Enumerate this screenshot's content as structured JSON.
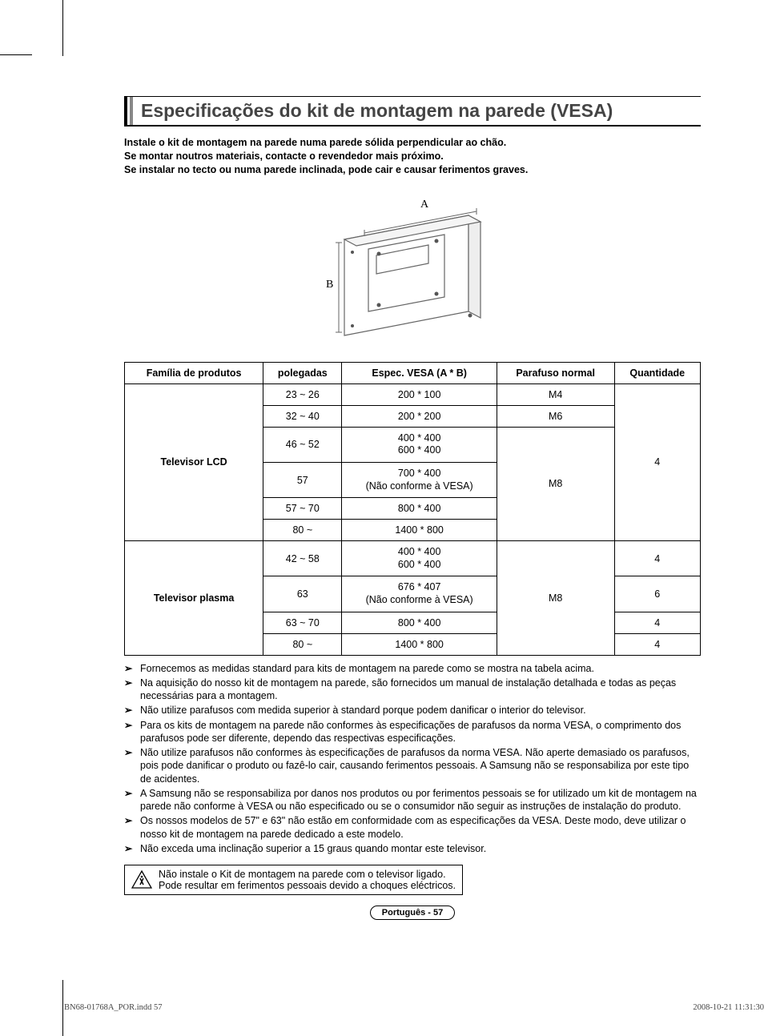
{
  "title": "Especificações do kit de montagem na parede (VESA)",
  "intro_lines": [
    "Instale o kit de montagem na parede numa parede sólida perpendicular ao chão.",
    "Se montar noutros materiais, contacte o revendedor mais próximo.",
    "Se instalar no tecto ou numa parede inclinada, pode cair e causar ferimentos graves."
  ],
  "diagram": {
    "label_a": "A",
    "label_b": "B",
    "stroke": "#666666",
    "fill": "#ffffff"
  },
  "table": {
    "columns": [
      "Família de produtos",
      "polegadas",
      "Espec. VESA (A * B)",
      "Parafuso normal",
      "Quantidade"
    ],
    "groups": [
      {
        "family": "Televisor LCD",
        "qty_merged": "4",
        "rows": [
          {
            "inches": "23 ~ 26",
            "vesa": "200 * 100",
            "screw": "M4"
          },
          {
            "inches": "32 ~ 40",
            "vesa": "200 * 200",
            "screw": "M6"
          },
          {
            "inches": "46 ~ 52",
            "vesa": "400 * 400\n600 * 400",
            "screw": "M8",
            "screw_rowspan": 4
          },
          {
            "inches": "57",
            "vesa": "700 * 400\n(Não conforme à VESA)"
          },
          {
            "inches": "57 ~ 70",
            "vesa": "800 * 400"
          },
          {
            "inches": "80 ~",
            "vesa": "1400 * 800"
          }
        ]
      },
      {
        "family": "Televisor plasma",
        "rows": [
          {
            "inches": "42 ~ 58",
            "vesa": "400 * 400\n600 * 400",
            "screw": "M8",
            "screw_rowspan": 4,
            "qty": "4"
          },
          {
            "inches": "63",
            "vesa": "676 * 407\n(Não conforme à VESA)",
            "qty": "6"
          },
          {
            "inches": "63 ~ 70",
            "vesa": "800 * 400",
            "qty": "4"
          },
          {
            "inches": "80 ~",
            "vesa": "1400 * 800",
            "qty": "4"
          }
        ]
      }
    ]
  },
  "notes": [
    "Fornecemos as medidas standard para kits de montagem na parede como se mostra na tabela acima.",
    "Na aquisição do nosso kit de montagem na parede, são fornecidos um manual de instalação detalhada e todas as peças necessárias para a montagem.",
    "Não utilize parafusos com medida superior à standard porque podem danificar o interior do televisor.",
    "Para os kits de montagem na parede não conformes às especificações de parafusos da norma VESA, o comprimento dos parafusos pode ser diferente, dependo das respectivas especificações.",
    "Não utilize parafusos não conformes às especificações de parafusos da norma VESA. Não aperte demasiado os parafusos, pois pode danificar o produto ou fazê-lo cair, causando ferimentos pessoais. A Samsung não se responsabiliza por este tipo de acidentes.",
    "A Samsung não se responsabiliza por danos nos produtos ou por ferimentos pessoais se for utilizado um kit de montagem na parede não conforme à VESA ou não especificado ou se o consumidor não seguir as instruções de instalação do produto.",
    "Os nossos modelos de 57\" e 63\" não estão em conformidade com as especificações da VESA. Deste modo, deve utilizar o nosso kit de montagem na parede dedicado a este modelo.",
    "Não exceda uma inclinação superior a 15 graus quando montar este televisor."
  ],
  "warning": {
    "line1": "Não instale o Kit de montagem na parede com o televisor ligado.",
    "line2": "Pode resultar em ferimentos pessoais devido a choques eléctricos."
  },
  "page_label": "Português - 57",
  "footer": {
    "left": "BN68-01768A_POR.indd   57",
    "right": "2008-10-21   11:31:30"
  },
  "colors": {
    "text": "#000000",
    "title": "#444444",
    "border": "#000000",
    "diagram_stroke": "#666666"
  }
}
